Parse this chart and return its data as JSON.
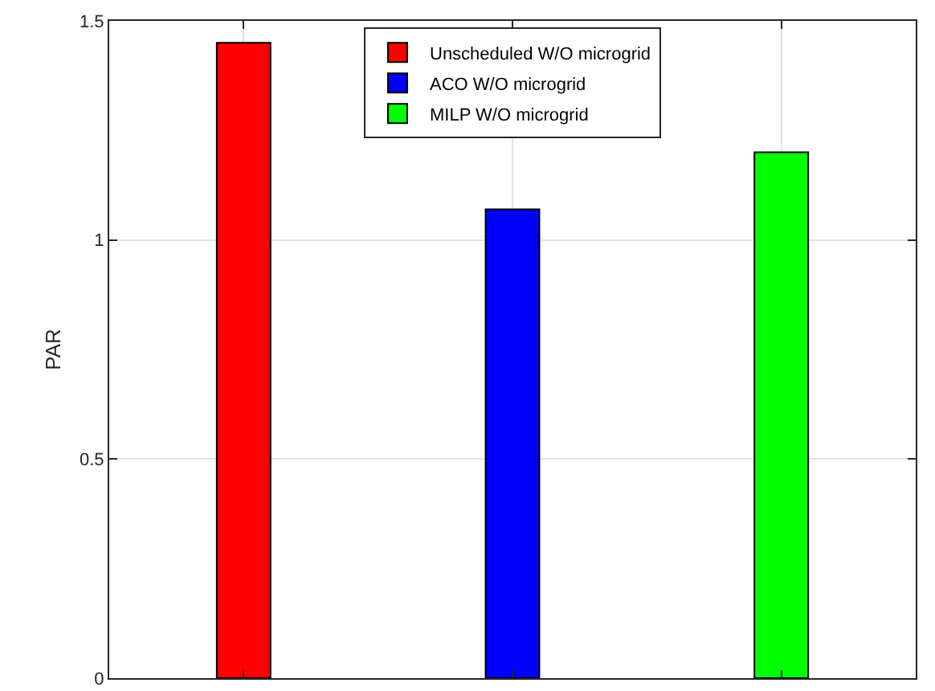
{
  "chart_data": {
    "type": "bar",
    "ylabel": "PAR",
    "categories": [
      null,
      null,
      null
    ],
    "series": [
      {
        "name": "Unscheduled W/O microgrid",
        "color": "#ff0000",
        "values": [
          1.45,
          null,
          null
        ]
      },
      {
        "name": "ACO W/O microgrid",
        "color": "#0000ff",
        "values": [
          null,
          1.07,
          null
        ]
      },
      {
        "name": "MILP W/O microgrid",
        "color": "#00ff00",
        "values": [
          null,
          null,
          1.2
        ]
      }
    ],
    "ylim": [
      0,
      1.5
    ],
    "yticks": [
      0,
      0.5,
      1,
      1.5
    ],
    "grid": true,
    "legend": "top"
  }
}
